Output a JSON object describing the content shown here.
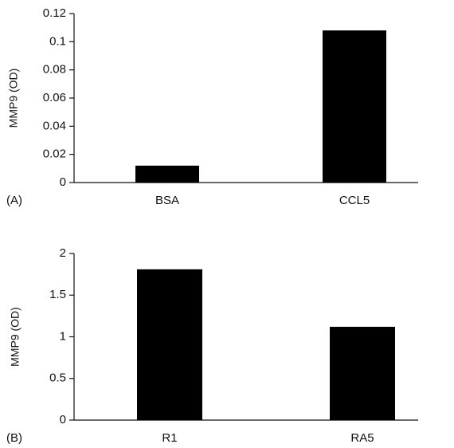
{
  "chart_data": [
    {
      "type": "bar",
      "panel_label": "(A)",
      "y_label": "MMP9 (OD)",
      "categories": [
        "BSA",
        "CCL5"
      ],
      "values": [
        0.012,
        0.108
      ],
      "color": "#000000",
      "ylim": [
        0,
        0.12
      ],
      "yticks": [
        0,
        0.02,
        0.04,
        0.06,
        0.08,
        0.1,
        0.12
      ]
    },
    {
      "type": "bar",
      "panel_label": "(B)",
      "y_label": "MMP9 (OD)",
      "categories": [
        "R1",
        "RA5"
      ],
      "values": [
        1.81,
        1.12
      ],
      "color": "#000000",
      "ylim": [
        0,
        2
      ],
      "yticks": [
        0,
        0.5,
        1,
        1.5,
        2
      ]
    }
  ]
}
